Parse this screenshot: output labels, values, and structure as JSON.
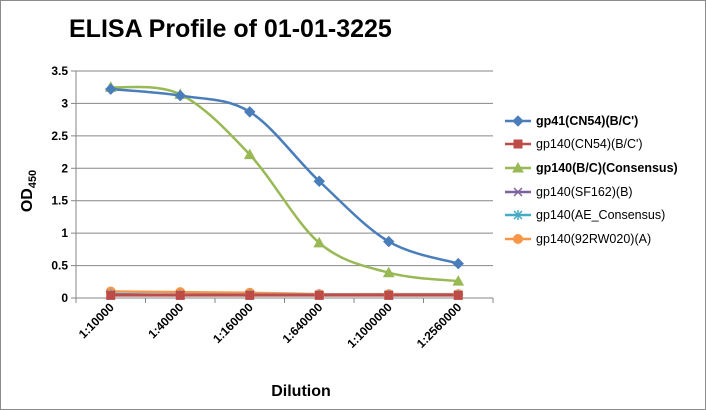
{
  "chart_data": {
    "type": "line",
    "title": "ELISA Profile of 01-01-3225",
    "xlabel": "Dilution",
    "ylabel_main": "OD",
    "ylabel_sub": "450",
    "categories": [
      "1:10000",
      "1:40000",
      "1:160000",
      "1:640000",
      "1:1000000",
      "1:2560000"
    ],
    "ylim": [
      0,
      3.5
    ],
    "yticks": [
      "0",
      "0.5",
      "1",
      "1.5",
      "2",
      "2.5",
      "3",
      "3.5"
    ],
    "grid": true,
    "legend_position": "right",
    "series": [
      {
        "name": "gp41(CN54)(B/C')",
        "color": "#4a7ebb",
        "marker": "diamond",
        "bold": true,
        "values": [
          3.22,
          3.12,
          2.87,
          1.8,
          0.87,
          0.53
        ]
      },
      {
        "name": "gp140(CN54)(B/C')",
        "color": "#be4b48",
        "marker": "square",
        "bold": false,
        "values": [
          0.04,
          0.04,
          0.04,
          0.04,
          0.04,
          0.04
        ]
      },
      {
        "name": "gp140(B/C)(Consensus)",
        "color": "#98b954",
        "marker": "triangle",
        "bold": true,
        "values": [
          3.25,
          3.14,
          2.21,
          0.85,
          0.39,
          0.26
        ]
      },
      {
        "name": "gp140(SF162)(B)",
        "color": "#7d60a0",
        "marker": "x",
        "bold": false,
        "values": [
          0.05,
          0.05,
          0.05,
          0.05,
          0.05,
          0.05
        ]
      },
      {
        "name": "gp140(AE_Consensus)",
        "color": "#46aac5",
        "marker": "star",
        "bold": false,
        "values": [
          0.06,
          0.05,
          0.05,
          0.05,
          0.05,
          0.05
        ]
      },
      {
        "name": "gp140(92RW020)(A)",
        "color": "#f79646",
        "marker": "circle",
        "bold": false,
        "values": [
          0.1,
          0.09,
          0.08,
          0.06,
          0.06,
          0.06
        ]
      }
    ]
  }
}
